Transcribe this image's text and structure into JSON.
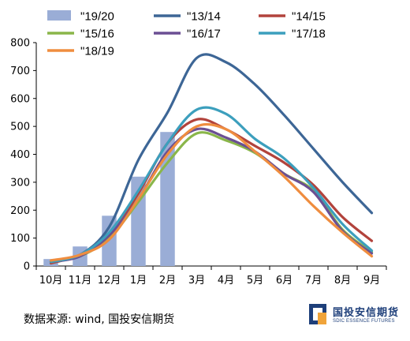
{
  "chart_data": {
    "type": "bar+line",
    "title": "",
    "xlabel": "",
    "ylabel": "",
    "categories": [
      "10月",
      "11月",
      "12月",
      "1月",
      "2月",
      "3月",
      "4月",
      "5月",
      "6月",
      "7月",
      "8月",
      "9月"
    ],
    "ylim": [
      0,
      800
    ],
    "yticks": [
      0,
      100,
      200,
      300,
      400,
      500,
      600,
      700,
      800
    ],
    "grid": false,
    "legend_position": "top",
    "bars": [
      {
        "name": "\"19/20",
        "color": "#9aadd6",
        "values": [
          25,
          70,
          180,
          320,
          480,
          null,
          null,
          null,
          null,
          null,
          null,
          null
        ]
      }
    ],
    "series": [
      {
        "name": "\"13/14",
        "color": "#3d6696",
        "values": [
          15,
          40,
          140,
          380,
          550,
          745,
          730,
          650,
          540,
          420,
          300,
          190
        ]
      },
      {
        "name": "\"14/15",
        "color": "#b2433c",
        "values": [
          10,
          40,
          110,
          260,
          440,
          525,
          490,
          430,
          370,
          290,
          175,
          90
        ]
      },
      {
        "name": "\"15/16",
        "color": "#8ab64a",
        "values": [
          15,
          35,
          100,
          230,
          370,
          475,
          450,
          405,
          330,
          270,
          130,
          50
        ]
      },
      {
        "name": "\"16/17",
        "color": "#6b4f93",
        "values": [
          15,
          35,
          110,
          240,
          410,
          490,
          460,
          410,
          330,
          265,
          125,
          45
        ]
      },
      {
        "name": "\"17/18",
        "color": "#3c9fbd",
        "values": [
          15,
          40,
          120,
          270,
          440,
          560,
          545,
          455,
          385,
          280,
          150,
          55
        ]
      },
      {
        "name": "\"18/19",
        "color": "#ef8d3f",
        "values": [
          20,
          40,
          95,
          240,
          400,
          500,
          490,
          410,
          320,
          215,
          120,
          35
        ]
      }
    ]
  },
  "footer": {
    "source_text": "数据来源: wind, 国投安信期货",
    "logo_cn": "国投安信期货",
    "logo_en": "SDIC ESSENCE FUTURES"
  }
}
